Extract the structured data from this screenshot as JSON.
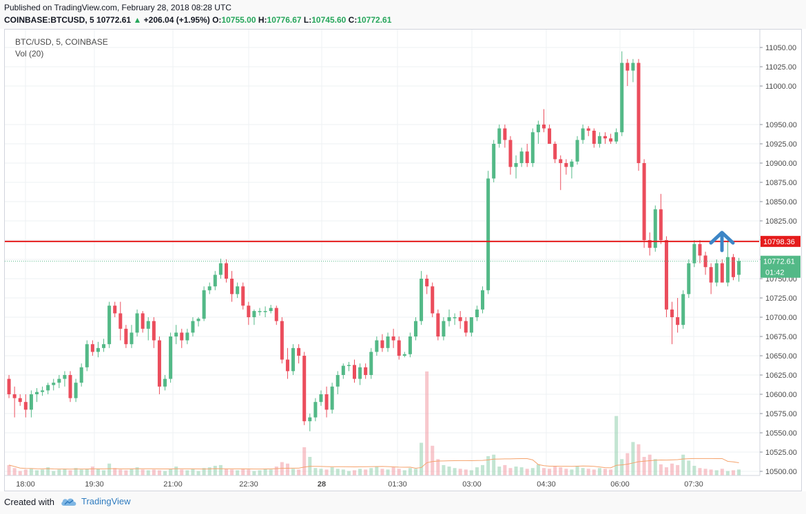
{
  "header": {
    "published": "Published on TradingView.com, February 28, 2018 08:28 UTC",
    "symbol": "COINBASE:BTCUSD, 5",
    "last": "10772.61",
    "change": "+206.04 (+1.95%)",
    "o_label": "O:",
    "o_value": "10755.00",
    "h_label": "H:",
    "h_value": "10776.67",
    "l_label": "L:",
    "l_value": "10745.60",
    "c_label": "C:",
    "c_value": "10772.61"
  },
  "legend": {
    "title": "BTC/USD, 5, COINBASE",
    "volume": "Vol (20)"
  },
  "footer": {
    "created_with": "Created with",
    "brand": "TradingView"
  },
  "colors": {
    "up": "#53b987",
    "down": "#eb4d5c",
    "resistance": "#e51c1c",
    "arrow": "#3d86c6",
    "grid": "#eef0f3",
    "volume_ma": "#f5a26b"
  },
  "chart_data": {
    "type": "candlestick",
    "y_ticks": [
      10500,
      10525,
      10550,
      10575,
      10600,
      10625,
      10650,
      10675,
      10700,
      10725,
      10750,
      10775,
      10800,
      10825,
      10850,
      10875,
      10900,
      10925,
      10950,
      11000,
      11025,
      11050
    ],
    "x_ticks": [
      "18:00",
      "19:30",
      "21:00",
      "22:30",
      "28",
      "01:30",
      "03:00",
      "04:30",
      "06:00",
      "07:30"
    ],
    "resistance_line": {
      "value": 10798.36,
      "label": "10798.36"
    },
    "last_price": {
      "value": 10772.61,
      "label": "10772.61",
      "countdown": "01:42"
    },
    "up_arrow": "up-arrow",
    "candles": [
      [
        10620,
        10625,
        10595,
        10600
      ],
      [
        10600,
        10610,
        10570,
        10595
      ],
      [
        10595,
        10600,
        10585,
        10590
      ],
      [
        10590,
        10600,
        10570,
        10580
      ],
      [
        10580,
        10605,
        10570,
        10600
      ],
      [
        10600,
        10608,
        10590,
        10603
      ],
      [
        10603,
        10610,
        10598,
        10605
      ],
      [
        10605,
        10615,
        10600,
        10612
      ],
      [
        10612,
        10620,
        10605,
        10615
      ],
      [
        10615,
        10625,
        10608,
        10620
      ],
      [
        10620,
        10630,
        10610,
        10625
      ],
      [
        10625,
        10630,
        10590,
        10595
      ],
      [
        10595,
        10620,
        10590,
        10615
      ],
      [
        10615,
        10640,
        10610,
        10635
      ],
      [
        10635,
        10670,
        10630,
        10665
      ],
      [
        10665,
        10670,
        10650,
        10655
      ],
      [
        10655,
        10668,
        10648,
        10660
      ],
      [
        10660,
        10672,
        10655,
        10665
      ],
      [
        10665,
        10720,
        10660,
        10715
      ],
      [
        10715,
        10720,
        10700,
        10705
      ],
      [
        10705,
        10720,
        10670,
        10685
      ],
      [
        10685,
        10690,
        10660,
        10665
      ],
      [
        10665,
        10690,
        10660,
        10680
      ],
      [
        10680,
        10710,
        10675,
        10705
      ],
      [
        10705,
        10708,
        10680,
        10685
      ],
      [
        10685,
        10700,
        10670,
        10695
      ],
      [
        10695,
        10700,
        10660,
        10670
      ],
      [
        10670,
        10675,
        10600,
        10610
      ],
      [
        10610,
        10625,
        10605,
        10620
      ],
      [
        10620,
        10680,
        10615,
        10675
      ],
      [
        10675,
        10690,
        10665,
        10680
      ],
      [
        10680,
        10685,
        10660,
        10670
      ],
      [
        10670,
        10685,
        10665,
        10680
      ],
      [
        10680,
        10700,
        10675,
        10695
      ],
      [
        10695,
        10700,
        10688,
        10698
      ],
      [
        10698,
        10740,
        10695,
        10735
      ],
      [
        10735,
        10745,
        10730,
        10740
      ],
      [
        10740,
        10760,
        10735,
        10755
      ],
      [
        10755,
        10776,
        10750,
        10770
      ],
      [
        10770,
        10775,
        10745,
        10750
      ],
      [
        10750,
        10760,
        10720,
        10730
      ],
      [
        10730,
        10745,
        10725,
        10740
      ],
      [
        10740,
        10745,
        10710,
        10715
      ],
      [
        10715,
        10720,
        10690,
        10700
      ],
      [
        10700,
        10710,
        10690,
        10708
      ],
      [
        10708,
        10712,
        10702,
        10708
      ],
      [
        10708,
        10714,
        10700,
        10708
      ],
      [
        10708,
        10716,
        10705,
        10712
      ],
      [
        10712,
        10715,
        10690,
        10695
      ],
      [
        10695,
        10700,
        10640,
        10645
      ],
      [
        10645,
        10660,
        10620,
        10630
      ],
      [
        10630,
        10665,
        10625,
        10660
      ],
      [
        10660,
        10665,
        10640,
        10650
      ],
      [
        10650,
        10655,
        10560,
        10565
      ],
      [
        10565,
        10575,
        10552,
        10570
      ],
      [
        10570,
        10595,
        10565,
        10590
      ],
      [
        10590,
        10605,
        10585,
        10600
      ],
      [
        10600,
        10610,
        10570,
        10580
      ],
      [
        10580,
        10615,
        10575,
        10610
      ],
      [
        10610,
        10630,
        10600,
        10625
      ],
      [
        10625,
        10640,
        10620,
        10637
      ],
      [
        10637,
        10642,
        10630,
        10638
      ],
      [
        10638,
        10645,
        10615,
        10620
      ],
      [
        10620,
        10640,
        10612,
        10635
      ],
      [
        10635,
        10640,
        10620,
        10625
      ],
      [
        10625,
        10660,
        10620,
        10655
      ],
      [
        10655,
        10675,
        10650,
        10670
      ],
      [
        10670,
        10678,
        10655,
        10660
      ],
      [
        10660,
        10680,
        10655,
        10675
      ],
      [
        10675,
        10685,
        10660,
        10670
      ],
      [
        10670,
        10675,
        10645,
        10650
      ],
      [
        10650,
        10655,
        10648,
        10652
      ],
      [
        10652,
        10680,
        10648,
        10675
      ],
      [
        10675,
        10700,
        10670,
        10695
      ],
      [
        10695,
        10760,
        10690,
        10750
      ],
      [
        10750,
        10755,
        10730,
        10740
      ],
      [
        10740,
        10745,
        10700,
        10705
      ],
      [
        10705,
        10710,
        10670,
        10675
      ],
      [
        10675,
        10700,
        10670,
        10695
      ],
      [
        10695,
        10710,
        10688,
        10700
      ],
      [
        10700,
        10705,
        10690,
        10700
      ],
      [
        10700,
        10708,
        10685,
        10695
      ],
      [
        10695,
        10700,
        10675,
        10680
      ],
      [
        10680,
        10700,
        10675,
        10700
      ],
      [
        10700,
        10715,
        10695,
        10710
      ],
      [
        10710,
        10740,
        10705,
        10735
      ],
      [
        10735,
        10890,
        10730,
        10880
      ],
      [
        10880,
        10930,
        10875,
        10925
      ],
      [
        10925,
        10950,
        10920,
        10945
      ],
      [
        10945,
        10950,
        10920,
        10930
      ],
      [
        10930,
        10935,
        10885,
        10895
      ],
      [
        10895,
        10910,
        10880,
        10900
      ],
      [
        10900,
        10920,
        10895,
        10915
      ],
      [
        10915,
        10925,
        10895,
        10900
      ],
      [
        10900,
        10945,
        10895,
        10940
      ],
      [
        10940,
        10955,
        10925,
        10950
      ],
      [
        10950,
        10970,
        10940,
        10945
      ],
      [
        10945,
        10950,
        10925,
        10925
      ],
      [
        10925,
        10928,
        10900,
        10905
      ],
      [
        10905,
        10910,
        10865,
        10900
      ],
      [
        10900,
        10905,
        10885,
        10895
      ],
      [
        10895,
        10905,
        10880,
        10902
      ],
      [
        10902,
        10935,
        10898,
        10930
      ],
      [
        10930,
        10950,
        10925,
        10945
      ],
      [
        10945,
        10948,
        10935,
        10942
      ],
      [
        10942,
        10945,
        10920,
        10925
      ],
      [
        10925,
        10940,
        10920,
        10935
      ],
      [
        10935,
        10940,
        10925,
        10932
      ],
      [
        10932,
        10938,
        10925,
        10928
      ],
      [
        10928,
        10945,
        10925,
        10940
      ],
      [
        10940,
        11045,
        10935,
        11030
      ],
      [
        11030,
        11035,
        11000,
        11020
      ],
      [
        11020,
        11035,
        11005,
        11030
      ],
      [
        11030,
        11035,
        10890,
        10900
      ],
      [
        10900,
        10905,
        10790,
        10800
      ],
      [
        10800,
        10810,
        10780,
        10790
      ],
      [
        10790,
        10845,
        10785,
        10840
      ],
      [
        10840,
        10860,
        10795,
        10800
      ],
      [
        10800,
        10805,
        10700,
        10710
      ],
      [
        10710,
        10720,
        10665,
        10700
      ],
      [
        10700,
        10725,
        10680,
        10690
      ],
      [
        10690,
        10735,
        10685,
        10730
      ],
      [
        10730,
        10775,
        10725,
        10770
      ],
      [
        10770,
        10800,
        10765,
        10795
      ],
      [
        10795,
        10800,
        10770,
        10780
      ],
      [
        10780,
        10785,
        10755,
        10765
      ],
      [
        10765,
        10770,
        10730,
        10745
      ],
      [
        10745,
        10775,
        10740,
        10770
      ],
      [
        10770,
        10775,
        10745,
        10745
      ],
      [
        10745,
        10800,
        10740,
        10778
      ],
      [
        10778,
        10782,
        10748,
        10752
      ],
      [
        10755,
        10777,
        10746,
        10773
      ]
    ],
    "volumes": [
      14,
      10,
      6,
      8,
      9,
      7,
      8,
      11,
      6,
      8,
      9,
      7,
      10,
      8,
      9,
      12,
      9,
      7,
      16,
      10,
      8,
      7,
      9,
      11,
      8,
      7,
      8,
      7,
      6,
      9,
      12,
      8,
      7,
      9,
      6,
      10,
      11,
      13,
      14,
      9,
      8,
      7,
      9,
      8,
      6,
      7,
      9,
      8,
      12,
      18,
      16,
      9,
      8,
      38,
      25,
      10,
      9,
      8,
      11,
      9,
      8,
      6,
      7,
      9,
      8,
      10,
      12,
      9,
      8,
      11,
      9,
      7,
      10,
      9,
      44,
      140,
      40,
      22,
      14,
      12,
      10,
      9,
      8,
      7,
      11,
      14,
      26,
      28,
      12,
      14,
      10,
      12,
      11,
      9,
      10,
      15,
      10,
      9,
      12,
      11,
      9,
      8,
      13,
      10,
      9,
      8,
      10,
      9,
      8,
      80,
      22,
      30,
      45,
      42,
      25,
      28,
      22,
      15,
      11,
      16,
      14,
      28,
      20,
      13,
      10,
      9,
      8,
      7,
      9,
      6,
      7,
      8
    ]
  }
}
